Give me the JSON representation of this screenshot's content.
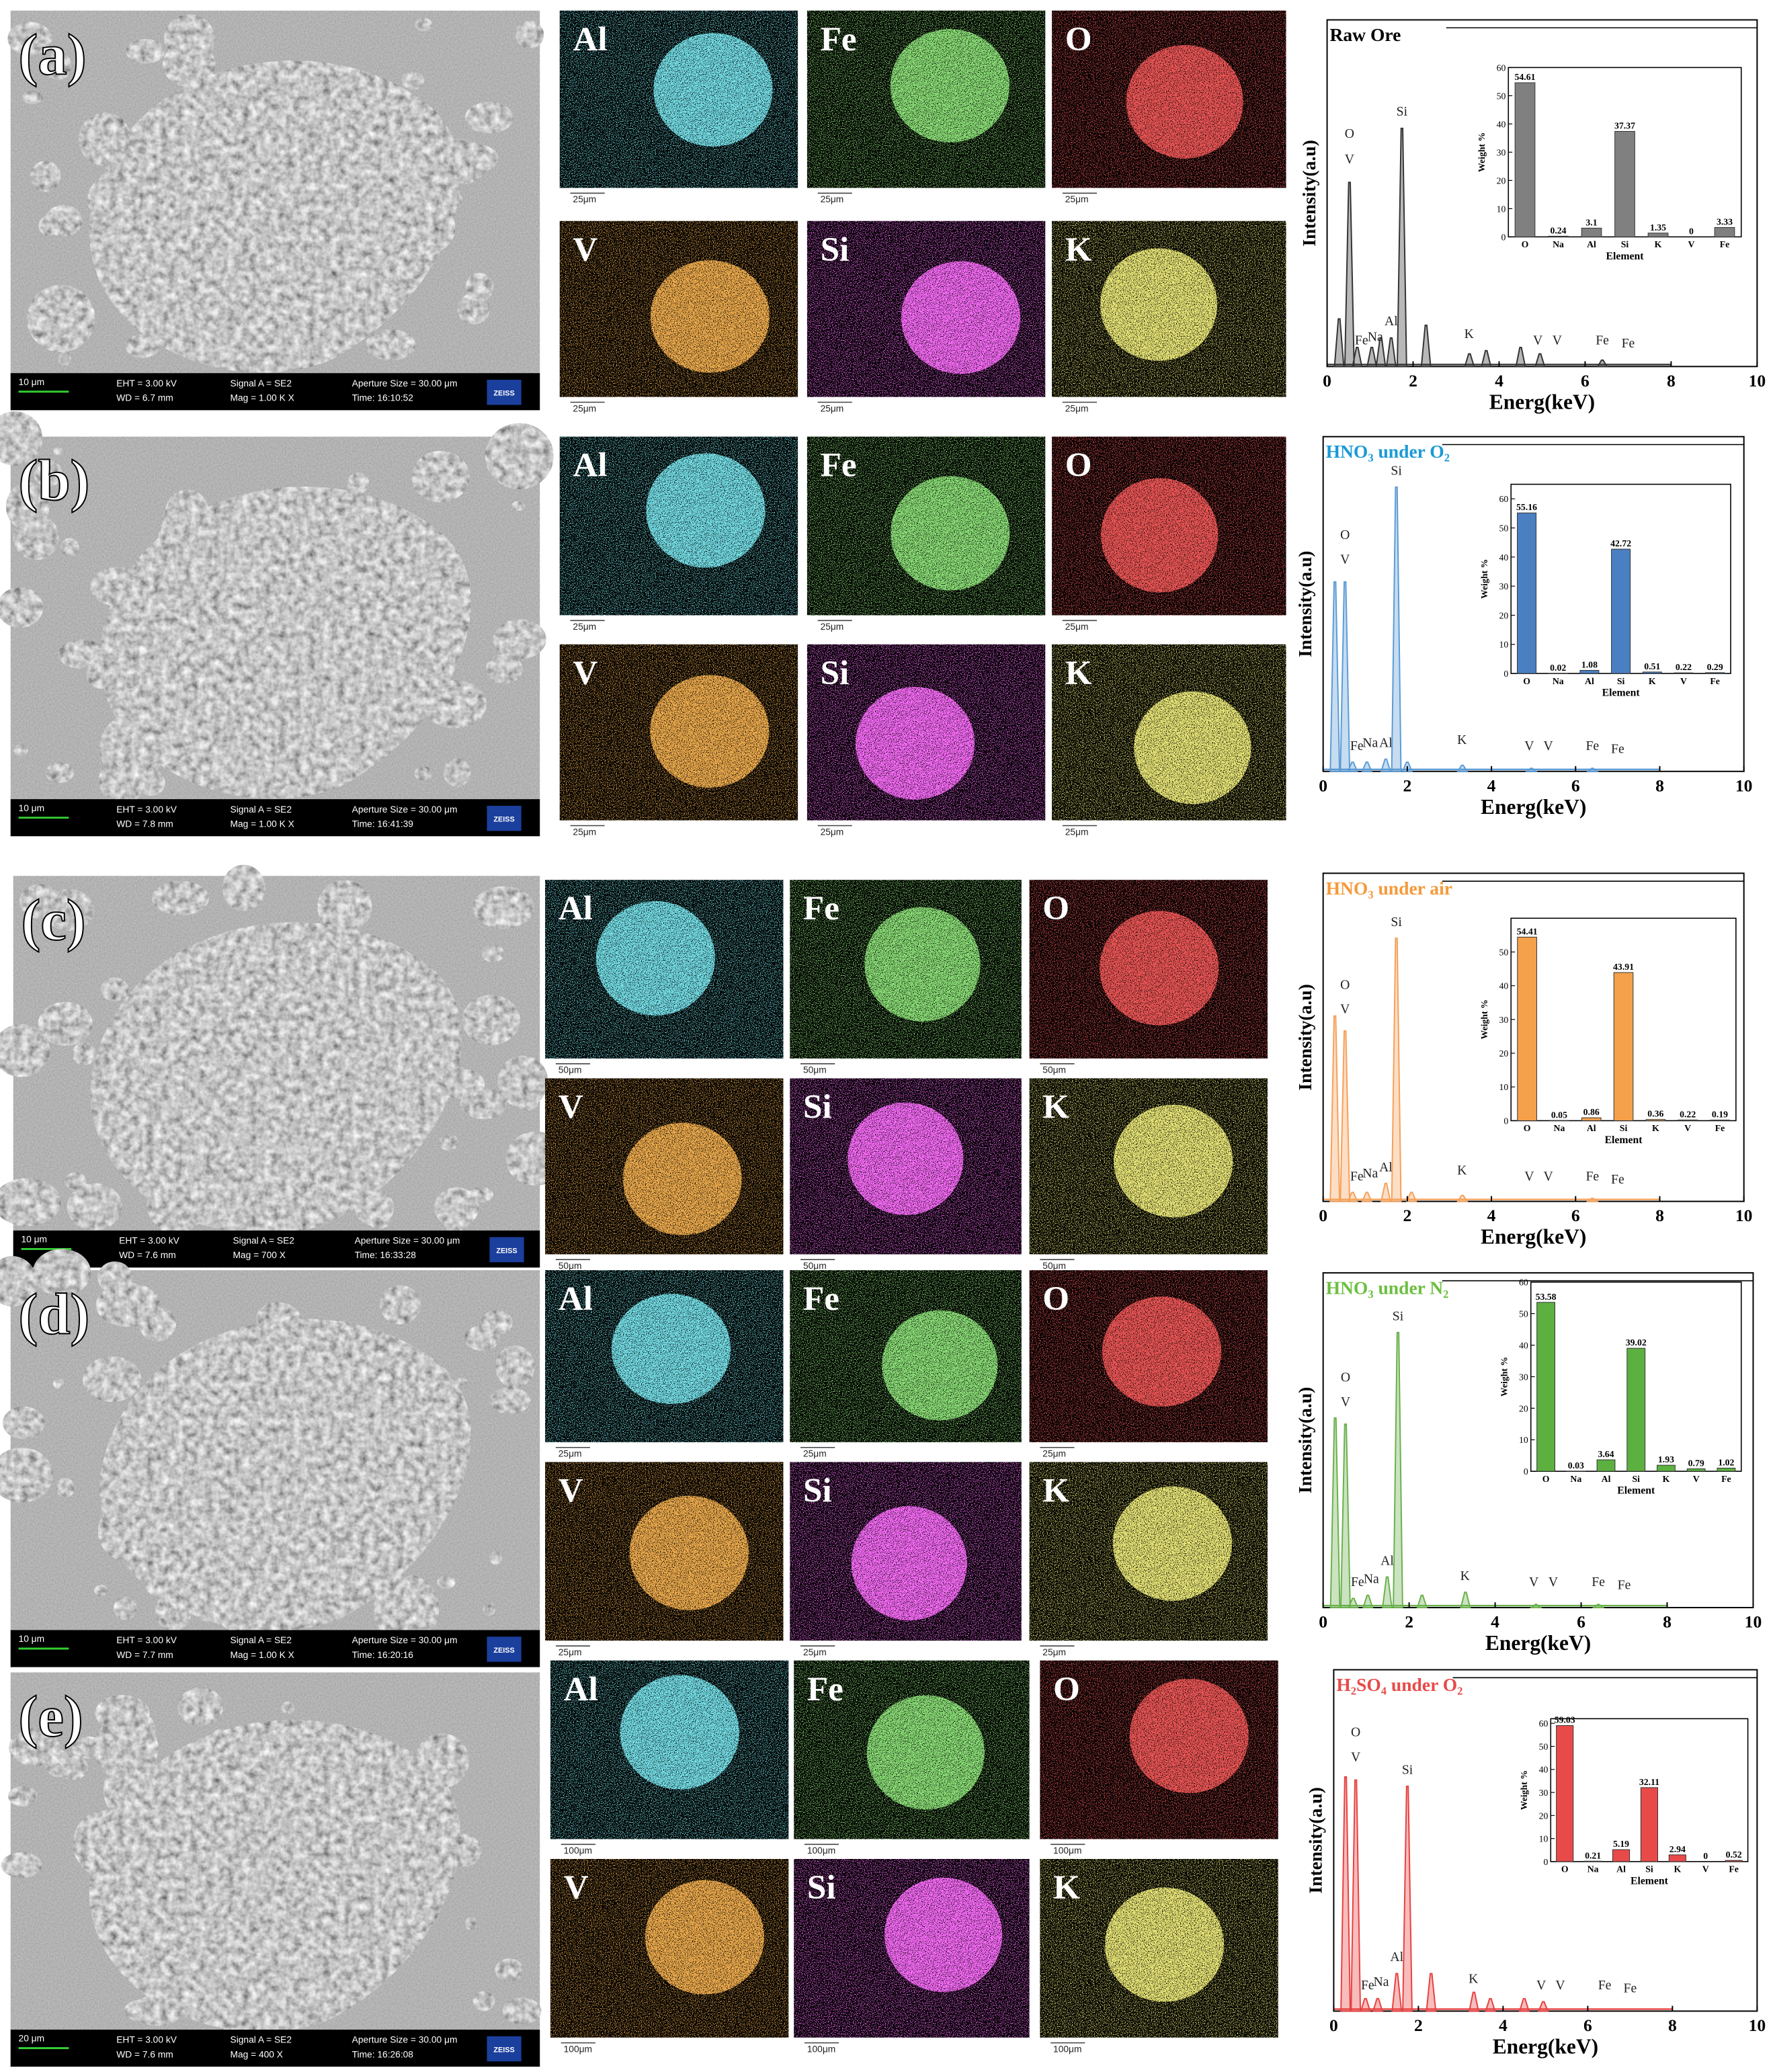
{
  "panels": [
    {
      "label": "(a)",
      "sem": {
        "scale": "10 μm",
        "eht": "EHT = 3.00 kV",
        "wd": "WD = 6.7 mm",
        "signal": "Signal A = SE2",
        "mag": "Mag =   1.00 K X",
        "aperture": "Aperture Size = 30.00 μm",
        "time": "Time: 16:10:52",
        "brand": "ZEISS"
      },
      "maps": [
        {
          "element": "Al",
          "scale": "25μm"
        },
        {
          "element": "Fe",
          "scale": "25μm"
        },
        {
          "element": "O",
          "scale": "25μm"
        },
        {
          "element": "V",
          "scale": "25μm"
        },
        {
          "element": "Si",
          "scale": "25μm"
        },
        {
          "element": "K",
          "scale": "25μm"
        }
      ],
      "spectrum": {
        "type": "area",
        "title": "Raw Ore",
        "title_color": "#000000",
        "color": "#333333",
        "xlabel": "Energ(keV)",
        "ylabel": "Intensity(a.u)",
        "xlim": [
          0,
          10
        ],
        "xticks": [
          0,
          2,
          4,
          6,
          8,
          10
        ],
        "ylim": [
          0,
          100
        ],
        "x": [
          0.28,
          0.52,
          0.7,
          1.04,
          1.25,
          1.49,
          1.74,
          2.3,
          3.31,
          3.7,
          4.5,
          4.95,
          6.4
        ],
        "values": [
          15,
          58,
          6,
          6,
          9,
          9,
          75,
          13,
          4,
          5,
          6,
          4,
          2
        ],
        "peak_labels": [
          "O",
          "V",
          "Si",
          "Al",
          "Fe",
          "Na",
          "K",
          "V",
          "V",
          "Fe",
          "Fe"
        ]
      },
      "inset": {
        "type": "bar",
        "ylabel": "Weight %",
        "xlabel": "Element",
        "categories": [
          "O",
          "Na",
          "Al",
          "Si",
          "K",
          "V",
          "Fe"
        ],
        "values": [
          54.61,
          0.24,
          3.1,
          37.37,
          1.35,
          0,
          3.33
        ],
        "color": "#808080",
        "ylim": [
          0,
          60
        ],
        "yticks": [
          0,
          10,
          20,
          30,
          40,
          50,
          60
        ]
      }
    },
    {
      "label": "(b)",
      "sem": {
        "scale": "10 μm",
        "eht": "EHT = 3.00 kV",
        "wd": "WD = 7.8 mm",
        "signal": "Signal A = SE2",
        "mag": "Mag =   1.00 K X",
        "aperture": "Aperture Size = 30.00 μm",
        "time": "Time: 16:41:39",
        "brand": "ZEISS"
      },
      "maps": [
        {
          "element": "Al",
          "scale": "25μm"
        },
        {
          "element": "Fe",
          "scale": "25μm"
        },
        {
          "element": "O",
          "scale": "25μm"
        },
        {
          "element": "V",
          "scale": "25μm"
        },
        {
          "element": "Si",
          "scale": "25μm"
        },
        {
          "element": "K",
          "scale": "25μm"
        }
      ],
      "spectrum": {
        "type": "area",
        "title": "HNO₃ under O₂",
        "title_color": "#1a9ad6",
        "color": "#5b9bd5",
        "xlabel": "Energ(keV)",
        "ylabel": "Intensity(a.u)",
        "xlim": [
          0,
          10
        ],
        "xticks": [
          0,
          2,
          4,
          6,
          8,
          10
        ],
        "ylim": [
          0,
          100
        ],
        "x": [
          0.28,
          0.52,
          0.7,
          1.04,
          1.49,
          1.74,
          2.0,
          3.31,
          4.95,
          6.4
        ],
        "values": [
          62,
          62,
          3,
          3,
          4,
          93,
          3,
          2,
          1,
          1
        ],
        "peak_labels": [
          "O",
          "V",
          "Si",
          "Al",
          "Fe",
          "Na",
          "K",
          "V",
          "V",
          "Fe",
          "Fe"
        ]
      },
      "inset": {
        "type": "bar",
        "ylabel": "Weight %",
        "xlabel": "Element",
        "categories": [
          "O",
          "Na",
          "Al",
          "Si",
          "K",
          "V",
          "Fe"
        ],
        "values": [
          55.16,
          0.02,
          1.08,
          42.72,
          0.51,
          0.22,
          0.29
        ],
        "color": "#4a7fc1",
        "ylim": [
          0,
          65
        ],
        "yticks": [
          0,
          10,
          20,
          30,
          40,
          50,
          60
        ]
      }
    },
    {
      "label": "(c)",
      "sem": {
        "scale": "10 μm",
        "eht": "EHT = 3.00 kV",
        "wd": "WD = 7.6 mm",
        "signal": "Signal A = SE2",
        "mag": "Mag =   700 X",
        "aperture": "Aperture Size = 30.00 μm",
        "time": "Time: 16:33:28",
        "brand": "ZEISS"
      },
      "maps": [
        {
          "element": "Al",
          "scale": "50μm"
        },
        {
          "element": "Fe",
          "scale": "50μm"
        },
        {
          "element": "O",
          "scale": "50μm"
        },
        {
          "element": "V",
          "scale": "50μm"
        },
        {
          "element": "Si",
          "scale": "50μm"
        },
        {
          "element": "K",
          "scale": "50μm"
        }
      ],
      "spectrum": {
        "type": "area",
        "title": "HNO₃ under air",
        "title_color": "#f59a3a",
        "color": "#f5a05a",
        "xlabel": "Energ(keV)",
        "ylabel": "Intensity(a.u)",
        "xlim": [
          0,
          10
        ],
        "xticks": [
          0,
          2,
          4,
          6,
          8,
          10
        ],
        "ylim": [
          0,
          100
        ],
        "x": [
          0.28,
          0.52,
          0.7,
          1.04,
          1.49,
          1.74,
          2.1,
          3.31,
          6.4
        ],
        "values": [
          62,
          57,
          3,
          3,
          6,
          88,
          3,
          2,
          1
        ],
        "peak_labels": [
          "O",
          "V",
          "Si",
          "Al",
          "Fe",
          "Na",
          "K",
          "V",
          "V",
          "Fe",
          "Fe"
        ]
      },
      "inset": {
        "type": "bar",
        "ylabel": "Weight %",
        "xlabel": "Element",
        "categories": [
          "O",
          "Na",
          "Al",
          "Si",
          "K",
          "V",
          "Fe"
        ],
        "values": [
          54.41,
          0.05,
          0.86,
          43.91,
          0.36,
          0.22,
          0.19
        ],
        "color": "#f5a04a",
        "ylim": [
          0,
          60
        ],
        "yticks": [
          0,
          10,
          20,
          30,
          40,
          50
        ]
      }
    },
    {
      "label": "(d)",
      "sem": {
        "scale": "10 μm",
        "eht": "EHT = 3.00 kV",
        "wd": "WD = 7.7 mm",
        "signal": "Signal A = SE2",
        "mag": "Mag =   1.00 K X",
        "aperture": "Aperture Size = 30.00 μm",
        "time": "Time: 16:20:16",
        "brand": "ZEISS"
      },
      "maps": [
        {
          "element": "Al",
          "scale": "25μm"
        },
        {
          "element": "Fe",
          "scale": "25μm"
        },
        {
          "element": "O",
          "scale": "25μm"
        },
        {
          "element": "V",
          "scale": "25μm"
        },
        {
          "element": "Si",
          "scale": "25μm"
        },
        {
          "element": "K",
          "scale": "25μm"
        }
      ],
      "spectrum": {
        "type": "area",
        "title": "HNO₃ under N₂",
        "title_color": "#6cbf40",
        "color": "#6ab04c",
        "xlabel": "Energ(keV)",
        "ylabel": "Intensity(a.u)",
        "xlim": [
          0,
          10
        ],
        "xticks": [
          0,
          2,
          4,
          6,
          8,
          10
        ],
        "ylim": [
          0,
          100
        ],
        "x": [
          0.28,
          0.52,
          0.7,
          1.04,
          1.49,
          1.74,
          2.3,
          3.31,
          4.95,
          6.4
        ],
        "values": [
          62,
          60,
          3,
          4,
          10,
          90,
          4,
          5,
          1,
          1
        ],
        "peak_labels": [
          "O",
          "V",
          "Si",
          "Al",
          "Fe",
          "Na",
          "K",
          "V",
          "V",
          "Fe",
          "Fe"
        ]
      },
      "inset": {
        "type": "bar",
        "ylabel": "Weight %",
        "xlabel": "Element",
        "categories": [
          "O",
          "Na",
          "Al",
          "Si",
          "K",
          "V",
          "Fe"
        ],
        "values": [
          53.58,
          0.03,
          3.64,
          39.02,
          1.93,
          0.79,
          1.02
        ],
        "color": "#5cb040",
        "ylim": [
          0,
          60
        ],
        "yticks": [
          0,
          10,
          20,
          30,
          40,
          50,
          60
        ]
      }
    },
    {
      "label": "(e)",
      "sem": {
        "scale": "20 μm",
        "eht": "EHT = 3.00 kV",
        "wd": "WD = 7.6 mm",
        "signal": "Signal A = SE2",
        "mag": "Mag =   400 X",
        "aperture": "Aperture Size = 30.00 μm",
        "time": "Time: 16:26:08",
        "brand": "ZEISS"
      },
      "maps": [
        {
          "element": "Al",
          "scale": "100μm"
        },
        {
          "element": "Fe",
          "scale": "100μm"
        },
        {
          "element": "O",
          "scale": "100μm"
        },
        {
          "element": "V",
          "scale": "100μm"
        },
        {
          "element": "Si",
          "scale": "100μm"
        },
        {
          "element": "K",
          "scale": "100μm"
        }
      ],
      "spectrum": {
        "type": "area",
        "title": "H₂SO₄ under O₂",
        "title_color": "#e84a4a",
        "color": "#e84040",
        "xlabel": "Energ(keV)",
        "ylabel": "Intensity(a.u)",
        "xlim": [
          0,
          10
        ],
        "xticks": [
          0,
          2,
          4,
          6,
          8,
          10
        ],
        "ylim": [
          0,
          100
        ],
        "x": [
          0.28,
          0.52,
          0.75,
          1.04,
          1.49,
          1.74,
          2.3,
          3.31,
          3.7,
          4.5,
          4.95
        ],
        "values": [
          75,
          74,
          4,
          4,
          12,
          72,
          12,
          6,
          4,
          4,
          3
        ],
        "peak_labels": [
          "O",
          "V",
          "Si",
          "Al",
          "Fe",
          "Na",
          "K",
          "V",
          "V",
          "Fe",
          "Fe"
        ]
      },
      "inset": {
        "type": "bar",
        "ylabel": "Weight %",
        "xlabel": "Element",
        "categories": [
          "O",
          "Na",
          "Al",
          "Si",
          "K",
          "V",
          "Fe"
        ],
        "values": [
          59.03,
          0.21,
          5.19,
          32.11,
          2.94,
          0,
          0.52
        ],
        "color": "#e84a4a",
        "ylim": [
          0,
          62
        ],
        "yticks": [
          0,
          10,
          20,
          30,
          40,
          50,
          60
        ]
      }
    }
  ]
}
